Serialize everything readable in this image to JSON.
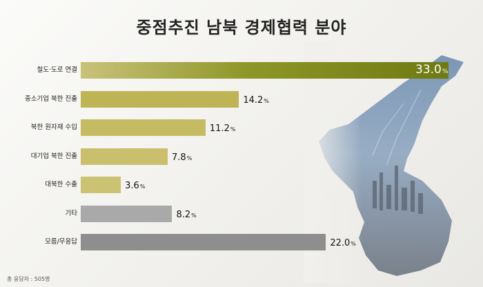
{
  "chart_data": {
    "type": "bar",
    "orientation": "horizontal",
    "title": "중점추진 남북 경제협력 분야",
    "categories": [
      "철도·도로 연결",
      "중소기업 북한 진출",
      "북한 원자재 수입",
      "대기업 북한 진출",
      "대북한 수출",
      "기타",
      "모름/무응답"
    ],
    "values": [
      33.0,
      14.2,
      11.2,
      7.8,
      3.6,
      8.2,
      22.0
    ],
    "value_labels": [
      "33.0",
      "14.2",
      "11.2",
      "7.8",
      "3.6",
      "8.2",
      "22.0"
    ],
    "unit": "%",
    "xlim": [
      0,
      33.0
    ],
    "colors": [
      "#6e7a12",
      "#bfb455",
      "#c5bb63",
      "#c9bf6c",
      "#cbc272",
      "#a9a9a9",
      "#8e8e8e"
    ],
    "footnote": "총 응답자 : 505명"
  }
}
